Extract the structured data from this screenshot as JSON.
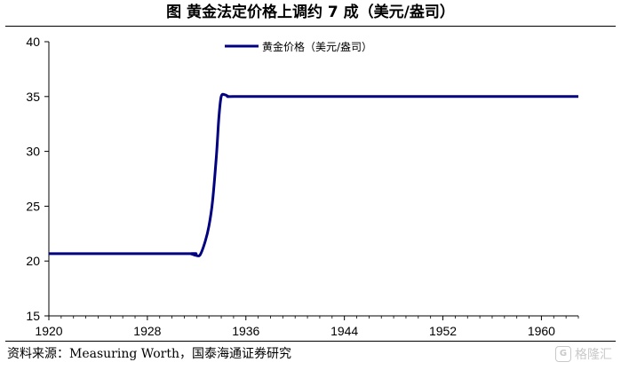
{
  "figure": {
    "title": "图  黄金法定价格上调约 7 成（美元/盎司）"
  },
  "source": {
    "text": "资料来源：Measuring Worth，国泰海通证券研究"
  },
  "watermark": {
    "text": "格隆汇",
    "logo_letter": "G"
  },
  "chart_data": {
    "type": "line",
    "title": "",
    "xlabel": "",
    "ylabel": "",
    "xlim": [
      1920,
      1963
    ],
    "ylim": [
      15,
      40
    ],
    "x_ticks": [
      1920,
      1928,
      1936,
      1944,
      1952,
      1960
    ],
    "y_ticks": [
      15,
      20,
      25,
      30,
      35,
      40
    ],
    "grid": false,
    "legend_position": "top-center",
    "series": [
      {
        "name": "黄金价格（美元/盎司）",
        "color": "#000080",
        "x": [
          1920,
          1931,
          1931.5,
          1932,
          1932.3,
          1932.7,
          1933,
          1933.3,
          1933.6,
          1933.8,
          1934,
          1934.3,
          1934.6,
          1935,
          1940,
          1950,
          1960,
          1963
        ],
        "y": [
          20.67,
          20.67,
          20.67,
          20.5,
          20.6,
          21.8,
          23.2,
          25.5,
          29.5,
          33.0,
          35.0,
          35.15,
          35.0,
          35.0,
          35.0,
          35.0,
          35.0,
          35.0
        ]
      }
    ]
  }
}
